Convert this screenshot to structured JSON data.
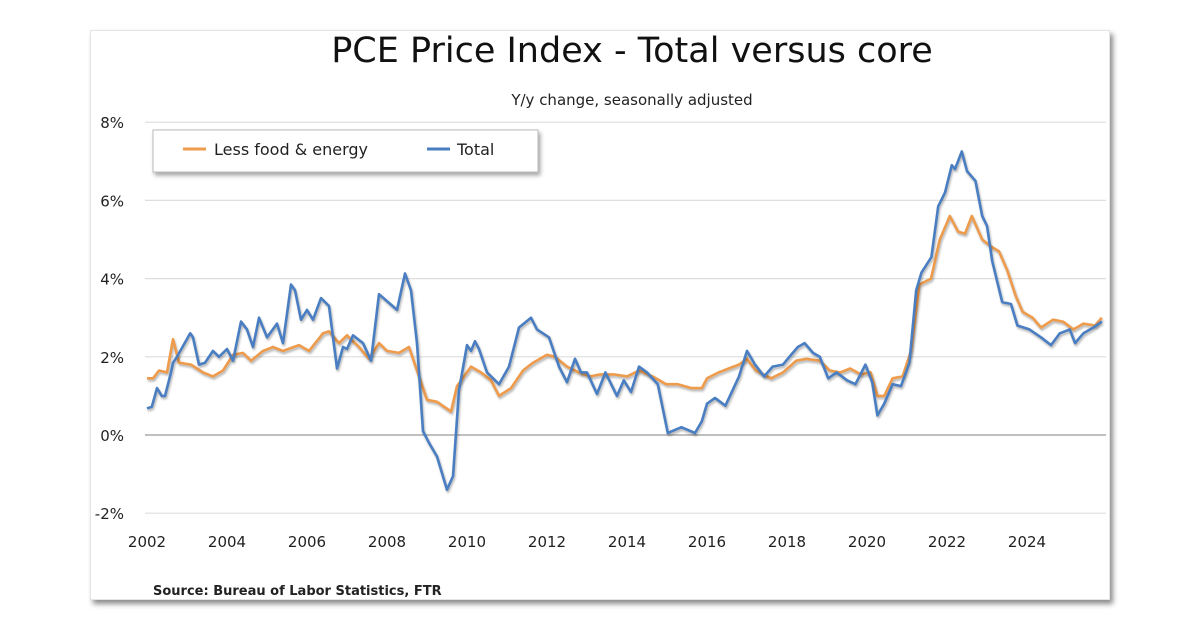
{
  "chart_data": {
    "type": "line",
    "title": "PCE Price Index - Total versus core",
    "subtitle": "Y/y change, seasonally adjusted",
    "source": "Source: Bureau of Labor Statistics, FTR",
    "xlabel": "",
    "ylabel": "",
    "x_ticks": [
      "2002",
      "2004",
      "2006",
      "2008",
      "2010",
      "2012",
      "2014",
      "2016",
      "2018",
      "2020",
      "2022",
      "2024"
    ],
    "y_ticks": [
      "-2%",
      "0%",
      "2%",
      "4%",
      "6%",
      "8%"
    ],
    "xlim": [
      2002,
      2026
    ],
    "ylim": [
      -2,
      8
    ],
    "grid": "horizontal",
    "legend_position": "top-left",
    "series": [
      {
        "name": "Less food & energy",
        "color": "#ee9b4c",
        "points": [
          [
            2002.0,
            1.45
          ],
          [
            2002.15,
            1.45
          ],
          [
            2002.3,
            1.65
          ],
          [
            2002.5,
            1.6
          ],
          [
            2002.65,
            2.45
          ],
          [
            2002.8,
            1.85
          ],
          [
            2003.1,
            1.8
          ],
          [
            2003.4,
            1.6
          ],
          [
            2003.65,
            1.5
          ],
          [
            2003.9,
            1.65
          ],
          [
            2004.15,
            2.05
          ],
          [
            2004.4,
            2.1
          ],
          [
            2004.6,
            1.9
          ],
          [
            2004.9,
            2.15
          ],
          [
            2005.15,
            2.25
          ],
          [
            2005.4,
            2.15
          ],
          [
            2005.8,
            2.3
          ],
          [
            2006.05,
            2.15
          ],
          [
            2006.4,
            2.6
          ],
          [
            2006.55,
            2.65
          ],
          [
            2006.8,
            2.35
          ],
          [
            2007.0,
            2.55
          ],
          [
            2007.3,
            2.25
          ],
          [
            2007.55,
            1.95
          ],
          [
            2007.8,
            2.35
          ],
          [
            2008.0,
            2.15
          ],
          [
            2008.3,
            2.1
          ],
          [
            2008.55,
            2.25
          ],
          [
            2008.8,
            1.5
          ],
          [
            2009.0,
            0.9
          ],
          [
            2009.25,
            0.85
          ],
          [
            2009.6,
            0.6
          ],
          [
            2009.75,
            1.25
          ],
          [
            2010.1,
            1.75
          ],
          [
            2010.35,
            1.6
          ],
          [
            2010.6,
            1.4
          ],
          [
            2010.8,
            1.0
          ],
          [
            2011.1,
            1.2
          ],
          [
            2011.4,
            1.65
          ],
          [
            2011.65,
            1.85
          ],
          [
            2012.0,
            2.05
          ],
          [
            2012.2,
            2.0
          ],
          [
            2012.5,
            1.75
          ],
          [
            2012.8,
            1.6
          ],
          [
            2013.08,
            1.5
          ],
          [
            2013.33,
            1.55
          ],
          [
            2013.67,
            1.55
          ],
          [
            2014.0,
            1.5
          ],
          [
            2014.3,
            1.65
          ],
          [
            2014.64,
            1.5
          ],
          [
            2014.98,
            1.3
          ],
          [
            2015.27,
            1.3
          ],
          [
            2015.61,
            1.2
          ],
          [
            2015.87,
            1.2
          ],
          [
            2016.0,
            1.45
          ],
          [
            2016.29,
            1.6
          ],
          [
            2016.54,
            1.7
          ],
          [
            2016.8,
            1.8
          ],
          [
            2017.0,
            1.95
          ],
          [
            2017.22,
            1.65
          ],
          [
            2017.6,
            1.45
          ],
          [
            2017.9,
            1.6
          ],
          [
            2018.23,
            1.9
          ],
          [
            2018.48,
            1.95
          ],
          [
            2018.82,
            1.9
          ],
          [
            2019.07,
            1.65
          ],
          [
            2019.33,
            1.6
          ],
          [
            2019.58,
            1.7
          ],
          [
            2019.84,
            1.55
          ],
          [
            2020.09,
            1.6
          ],
          [
            2020.26,
            1.0
          ],
          [
            2020.43,
            1.0
          ],
          [
            2020.64,
            1.45
          ],
          [
            2020.89,
            1.5
          ],
          [
            2021.1,
            2.15
          ],
          [
            2021.31,
            3.85
          ],
          [
            2021.6,
            4.0
          ],
          [
            2021.82,
            5.0
          ],
          [
            2022.07,
            5.6
          ],
          [
            2022.28,
            5.2
          ],
          [
            2022.45,
            5.15
          ],
          [
            2022.62,
            5.6
          ],
          [
            2022.88,
            5.0
          ],
          [
            2023.13,
            4.8
          ],
          [
            2023.3,
            4.7
          ],
          [
            2023.51,
            4.2
          ],
          [
            2023.72,
            3.55
          ],
          [
            2023.89,
            3.15
          ],
          [
            2024.14,
            3.0
          ],
          [
            2024.35,
            2.75
          ],
          [
            2024.65,
            2.95
          ],
          [
            2024.9,
            2.9
          ],
          [
            2025.16,
            2.7
          ],
          [
            2025.41,
            2.85
          ],
          [
            2025.7,
            2.8
          ],
          [
            2025.87,
            3.0
          ]
        ]
      },
      {
        "name": "Total",
        "color": "#4a7ec2",
        "points": [
          [
            2002.0,
            0.68
          ],
          [
            2002.12,
            0.72
          ],
          [
            2002.25,
            1.2
          ],
          [
            2002.37,
            1.0
          ],
          [
            2002.45,
            1.0
          ],
          [
            2002.6,
            1.6
          ],
          [
            2002.65,
            1.85
          ],
          [
            2002.75,
            2.0
          ],
          [
            2003.08,
            2.6
          ],
          [
            2003.15,
            2.5
          ],
          [
            2003.3,
            1.8
          ],
          [
            2003.45,
            1.85
          ],
          [
            2003.65,
            2.15
          ],
          [
            2003.8,
            2.0
          ],
          [
            2004.0,
            2.2
          ],
          [
            2004.15,
            1.9
          ],
          [
            2004.35,
            2.9
          ],
          [
            2004.5,
            2.7
          ],
          [
            2004.65,
            2.25
          ],
          [
            2004.8,
            3.0
          ],
          [
            2005.0,
            2.5
          ],
          [
            2005.25,
            2.85
          ],
          [
            2005.4,
            2.35
          ],
          [
            2005.6,
            3.85
          ],
          [
            2005.7,
            3.7
          ],
          [
            2005.85,
            2.95
          ],
          [
            2006.0,
            3.2
          ],
          [
            2006.15,
            2.95
          ],
          [
            2006.35,
            3.5
          ],
          [
            2006.55,
            3.3
          ],
          [
            2006.75,
            1.7
          ],
          [
            2006.9,
            2.25
          ],
          [
            2007.0,
            2.2
          ],
          [
            2007.15,
            2.55
          ],
          [
            2007.4,
            2.35
          ],
          [
            2007.6,
            1.9
          ],
          [
            2007.8,
            3.6
          ],
          [
            2008.25,
            3.2
          ],
          [
            2008.45,
            4.13
          ],
          [
            2008.6,
            3.7
          ],
          [
            2008.75,
            2.35
          ],
          [
            2008.9,
            0.1
          ],
          [
            2009.05,
            -0.2
          ],
          [
            2009.25,
            -0.55
          ],
          [
            2009.5,
            -1.4
          ],
          [
            2009.65,
            -1.05
          ],
          [
            2009.8,
            1.15
          ],
          [
            2010.0,
            2.3
          ],
          [
            2010.1,
            2.15
          ],
          [
            2010.2,
            2.4
          ],
          [
            2010.3,
            2.2
          ],
          [
            2010.5,
            1.6
          ],
          [
            2010.8,
            1.3
          ],
          [
            2011.05,
            1.75
          ],
          [
            2011.3,
            2.75
          ],
          [
            2011.6,
            3.0
          ],
          [
            2011.75,
            2.7
          ],
          [
            2012.05,
            2.5
          ],
          [
            2012.3,
            1.75
          ],
          [
            2012.5,
            1.35
          ],
          [
            2012.7,
            1.95
          ],
          [
            2012.85,
            1.6
          ],
          [
            2013.0,
            1.6
          ],
          [
            2013.25,
            1.05
          ],
          [
            2013.46,
            1.6
          ],
          [
            2013.75,
            1.0
          ],
          [
            2013.92,
            1.4
          ],
          [
            2014.1,
            1.1
          ],
          [
            2014.3,
            1.75
          ],
          [
            2014.5,
            1.6
          ],
          [
            2014.77,
            1.3
          ],
          [
            2014.94,
            0.45
          ],
          [
            2015.02,
            0.05
          ],
          [
            2015.36,
            0.2
          ],
          [
            2015.7,
            0.05
          ],
          [
            2015.87,
            0.35
          ],
          [
            2016.0,
            0.8
          ],
          [
            2016.2,
            0.95
          ],
          [
            2016.46,
            0.75
          ],
          [
            2016.8,
            1.5
          ],
          [
            2017.0,
            2.15
          ],
          [
            2017.2,
            1.8
          ],
          [
            2017.43,
            1.5
          ],
          [
            2017.64,
            1.75
          ],
          [
            2017.9,
            1.8
          ],
          [
            2018.06,
            2.0
          ],
          [
            2018.27,
            2.25
          ],
          [
            2018.44,
            2.35
          ],
          [
            2018.65,
            2.1
          ],
          [
            2018.82,
            2.0
          ],
          [
            2019.03,
            1.45
          ],
          [
            2019.24,
            1.6
          ],
          [
            2019.5,
            1.4
          ],
          [
            2019.71,
            1.3
          ],
          [
            2019.96,
            1.8
          ],
          [
            2020.13,
            1.35
          ],
          [
            2020.26,
            0.5
          ],
          [
            2020.43,
            0.8
          ],
          [
            2020.64,
            1.3
          ],
          [
            2020.85,
            1.25
          ],
          [
            2021.06,
            1.85
          ],
          [
            2021.23,
            3.7
          ],
          [
            2021.36,
            4.15
          ],
          [
            2021.61,
            4.55
          ],
          [
            2021.78,
            5.85
          ],
          [
            2021.95,
            6.2
          ],
          [
            2022.12,
            6.9
          ],
          [
            2022.2,
            6.8
          ],
          [
            2022.37,
            7.25
          ],
          [
            2022.5,
            6.75
          ],
          [
            2022.71,
            6.5
          ],
          [
            2022.88,
            5.6
          ],
          [
            2023.0,
            5.35
          ],
          [
            2023.13,
            4.45
          ],
          [
            2023.38,
            3.4
          ],
          [
            2023.6,
            3.35
          ],
          [
            2023.76,
            2.8
          ],
          [
            2024.06,
            2.7
          ],
          [
            2024.35,
            2.5
          ],
          [
            2024.6,
            2.3
          ],
          [
            2024.82,
            2.6
          ],
          [
            2025.07,
            2.7
          ],
          [
            2025.2,
            2.35
          ],
          [
            2025.41,
            2.6
          ],
          [
            2025.66,
            2.75
          ],
          [
            2025.87,
            2.9
          ]
        ]
      }
    ]
  }
}
